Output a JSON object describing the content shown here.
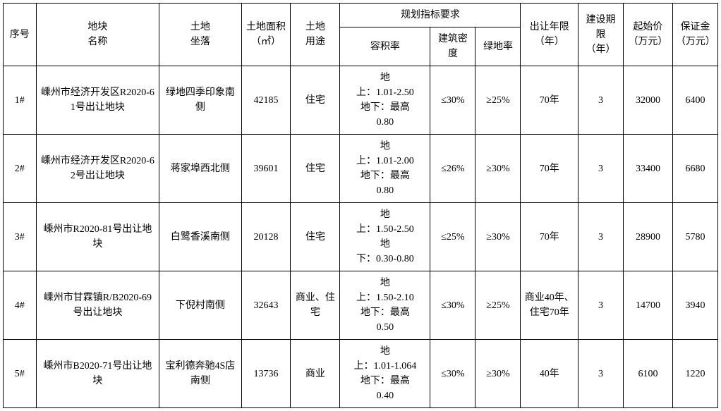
{
  "table": {
    "headers": {
      "seq": "序号",
      "name": "地块\n名称",
      "location": "土地\n坐落",
      "area": "土地面积\n（㎡）",
      "use": "土地\n用途",
      "plan_group": "规划指标要求",
      "far": "容积率",
      "density": "建筑密度",
      "green": "绿地率",
      "term": "出让年限\n（年）",
      "build": "建设期限\n（年）",
      "start": "起始价\n（万元）",
      "deposit": "保证金\n（万元）"
    },
    "rows": [
      {
        "seq": "1#",
        "name": "嵊州市经济开发区R2020-61号出让地块",
        "location": "绿地四季印象南侧",
        "area": "42185",
        "use": "住宅",
        "far": "地\n上：1.01-2.50\n地下：最高\n0.80",
        "density": "≤30%",
        "green": "≥25%",
        "term": "70年",
        "build": "3",
        "start": "32000",
        "deposit": "6400"
      },
      {
        "seq": "2#",
        "name": "嵊州市经济开发区R2020-62号出让地块",
        "location": "蒋家埠西北侧",
        "area": "39601",
        "use": "住宅",
        "far": "地\n上：1.01-2.00\n地下：最高\n0.80",
        "density": "≤26%",
        "green": "≥30%",
        "term": "70年",
        "build": "3",
        "start": "33400",
        "deposit": "6680"
      },
      {
        "seq": "3#",
        "name": "嵊州市R2020-81号出让地块",
        "location": "白鹭香溪南侧",
        "area": "20128",
        "use": "住宅",
        "far": "地\n上：1.50-2.50\n地\n下：0.30-0.80",
        "density": "≤25%",
        "green": "≥30%",
        "term": "70年",
        "build": "3",
        "start": "28900",
        "deposit": "5780"
      },
      {
        "seq": "4#",
        "name": "嵊州市甘霖镇R/B2020-69号出让地块",
        "location": "下倪村南侧",
        "area": "32643",
        "use": "商业、住宅",
        "far": "地\n上：1.50-2.10\n地下：最高\n0.50",
        "density": "≤30%",
        "green": "≥25%",
        "term": "商业40年、住宅70年",
        "build": "3",
        "start": "14700",
        "deposit": "3940"
      },
      {
        "seq": "5#",
        "name": "嵊州市B2020-71号出让地块",
        "location": "宝利德奔驰4S店南侧",
        "area": "13736",
        "use": "商业",
        "far": "地\n上：1.01-1.064\n地下：最高\n0.40",
        "density": "≤30%",
        "green": "≥30%",
        "term": "40年",
        "build": "3",
        "start": "6100",
        "deposit": "1220"
      }
    ]
  },
  "style": {
    "border_color": "#000000",
    "background_color": "#ffffff",
    "text_color": "#000000",
    "font_family": "SimSun",
    "font_size_pt": 11,
    "line_height": 1.5
  }
}
